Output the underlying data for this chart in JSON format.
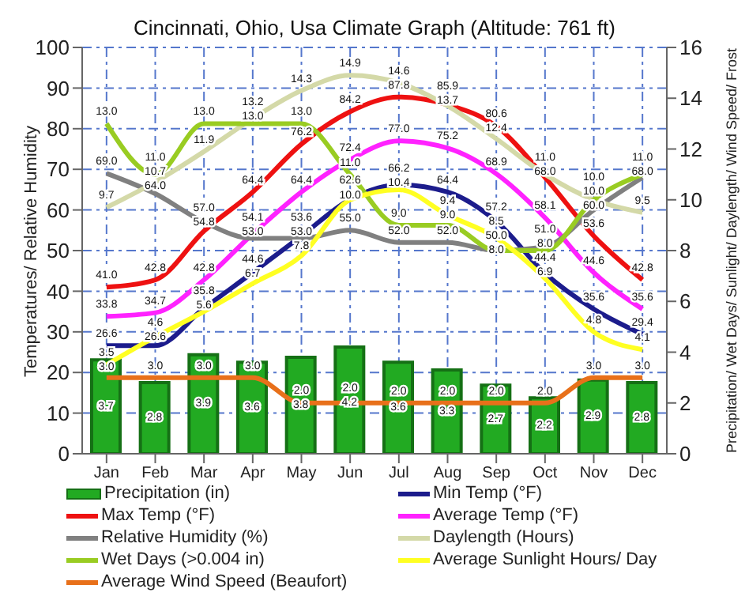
{
  "chart_data": {
    "type": "line",
    "title": "Cincinnati, Ohio, Usa Climate Graph (Altitude: 761 ft)",
    "ylabel": "Temperatures/ Relative Humidity",
    "y2label": "Precipitation/ Wet Days/ Sunlight/ Daylength/ Wind Speed/ Frost",
    "categories": [
      "Jan",
      "Feb",
      "Mar",
      "Apr",
      "May",
      "Jun",
      "Jul",
      "Aug",
      "Sep",
      "Oct",
      "Nov",
      "Dec"
    ],
    "series": [
      {
        "name": "Precipitation (in)",
        "type": "bar",
        "axis": "y2",
        "color": "#22aa22",
        "values": [
          3.7,
          2.8,
          3.9,
          3.6,
          3.8,
          4.2,
          3.6,
          3.3,
          2.7,
          2.2,
          2.9,
          2.8
        ],
        "value_labels": [
          "3.7",
          "2.8",
          "3.9",
          "3.6",
          "3.8",
          "4.2",
          "3.6",
          "3.3",
          "2.7",
          "2.2",
          "2.9",
          "2.8"
        ]
      },
      {
        "name": "Min Temp (°F)",
        "color": "#1c1c8c",
        "values": [
          26.6,
          26.6,
          35.8,
          44.6,
          53.6,
          62.6,
          66.2,
          64.4,
          57.2,
          44.4,
          35.6,
          29.4
        ],
        "value_labels": [
          "26.6",
          "26.6",
          "35.8",
          "44.6",
          "53.6",
          "62.6",
          "66.2",
          "64.4",
          "57.2",
          "44.4",
          "35.6",
          "29.4"
        ]
      },
      {
        "name": "Max Temp (°F)",
        "color": "#ee1111",
        "values": [
          41.0,
          42.8,
          54.8,
          64.4,
          76.2,
          84.2,
          87.8,
          85.9,
          80.6,
          68.0,
          53.6,
          42.8
        ],
        "value_labels": [
          "41.0",
          "42.8",
          "54.8",
          "64.4",
          "76.2",
          "84.2",
          "87.8",
          "85.9",
          "80.6",
          "68.0",
          "53.6",
          "42.8"
        ]
      },
      {
        "name": "Average Temp (°F)",
        "color": "#ff22ff",
        "values": [
          33.8,
          34.7,
          42.8,
          54.1,
          64.4,
          72.4,
          77.0,
          75.2,
          68.9,
          58.1,
          44.6,
          35.6
        ],
        "value_labels": [
          "33.8",
          "34.7",
          "42.8",
          "54.1",
          "64.4",
          "72.4",
          "77.0",
          "75.2",
          "68.9",
          "58.1",
          "44.6",
          "35.6"
        ]
      },
      {
        "name": "Relative Humidity (%)",
        "color": "#808080",
        "values": [
          69.0,
          64.0,
          57.0,
          53.0,
          53.0,
          55.0,
          52.0,
          52.0,
          50.0,
          51.0,
          60.0,
          68.0
        ],
        "value_labels": [
          "69.0",
          "64.0",
          "57.0",
          "53.0",
          "53.0",
          "55.0",
          "52.0",
          "52.0",
          "50.0",
          "51.0",
          "60.0",
          "68.0"
        ]
      },
      {
        "name": "Daylength (Hours)",
        "axis": "y2",
        "color": "#d4d9a8",
        "values": [
          9.7,
          10.7,
          11.9,
          13.2,
          14.3,
          14.9,
          14.6,
          13.7,
          12.4,
          11.0,
          10.0,
          9.5
        ],
        "value_labels": [
          "9.7",
          "10.7",
          "11.9",
          "13.2",
          "14.3",
          "14.9",
          "14.6",
          "13.7",
          "12.4",
          "11.0",
          "10.0",
          "9.5"
        ]
      },
      {
        "name": "Wet Days (>0.004 in)",
        "axis": "y2",
        "color": "#99cc22",
        "values": [
          13.0,
          11.0,
          13.0,
          13.0,
          13.0,
          11.0,
          9.0,
          9.0,
          8.0,
          8.0,
          10.0,
          11.0
        ],
        "value_labels": [
          "13.0",
          "11.0",
          "13.0",
          "13.0",
          "13.0",
          "11.0",
          "9.0",
          "9.0",
          "8.0",
          "8.0",
          "10.0",
          "11.0"
        ]
      },
      {
        "name": "Average Sunlight Hours/ Day",
        "axis": "y2",
        "color": "#ffff22",
        "values": [
          3.5,
          4.6,
          5.6,
          6.7,
          7.8,
          10.0,
          10.4,
          9.4,
          8.5,
          6.9,
          4.8,
          4.1
        ],
        "value_labels": [
          "3.5",
          "4.6",
          "5.6",
          "6.7",
          "7.8",
          "10.0",
          "10.4",
          "9.4",
          "8.5",
          "6.9",
          "4.8",
          "4.1"
        ]
      },
      {
        "name": "Average Wind Speed (Beaufort)",
        "axis": "y2",
        "color": "#e8701a",
        "values": [
          3.0,
          3.0,
          3.0,
          3.0,
          2.0,
          2.0,
          2.0,
          2.0,
          2.0,
          2.0,
          3.0,
          3.0
        ],
        "value_labels": [
          "3.0",
          "3.0",
          "3.0",
          "3.0",
          "2.0",
          "2.0",
          "2.0",
          "2.0",
          "2.0",
          "2.0",
          "3.0",
          "3.0"
        ]
      }
    ],
    "ylim": [
      0,
      100
    ],
    "yticks": [
      0,
      10,
      20,
      30,
      40,
      50,
      60,
      70,
      80,
      90,
      100
    ],
    "y2lim": [
      0,
      16
    ],
    "y2ticks": [
      0,
      2,
      4,
      6,
      8,
      10,
      12,
      14,
      16
    ],
    "grid": true,
    "legend": "bottom",
    "marker": "none",
    "line_style": "solid"
  }
}
